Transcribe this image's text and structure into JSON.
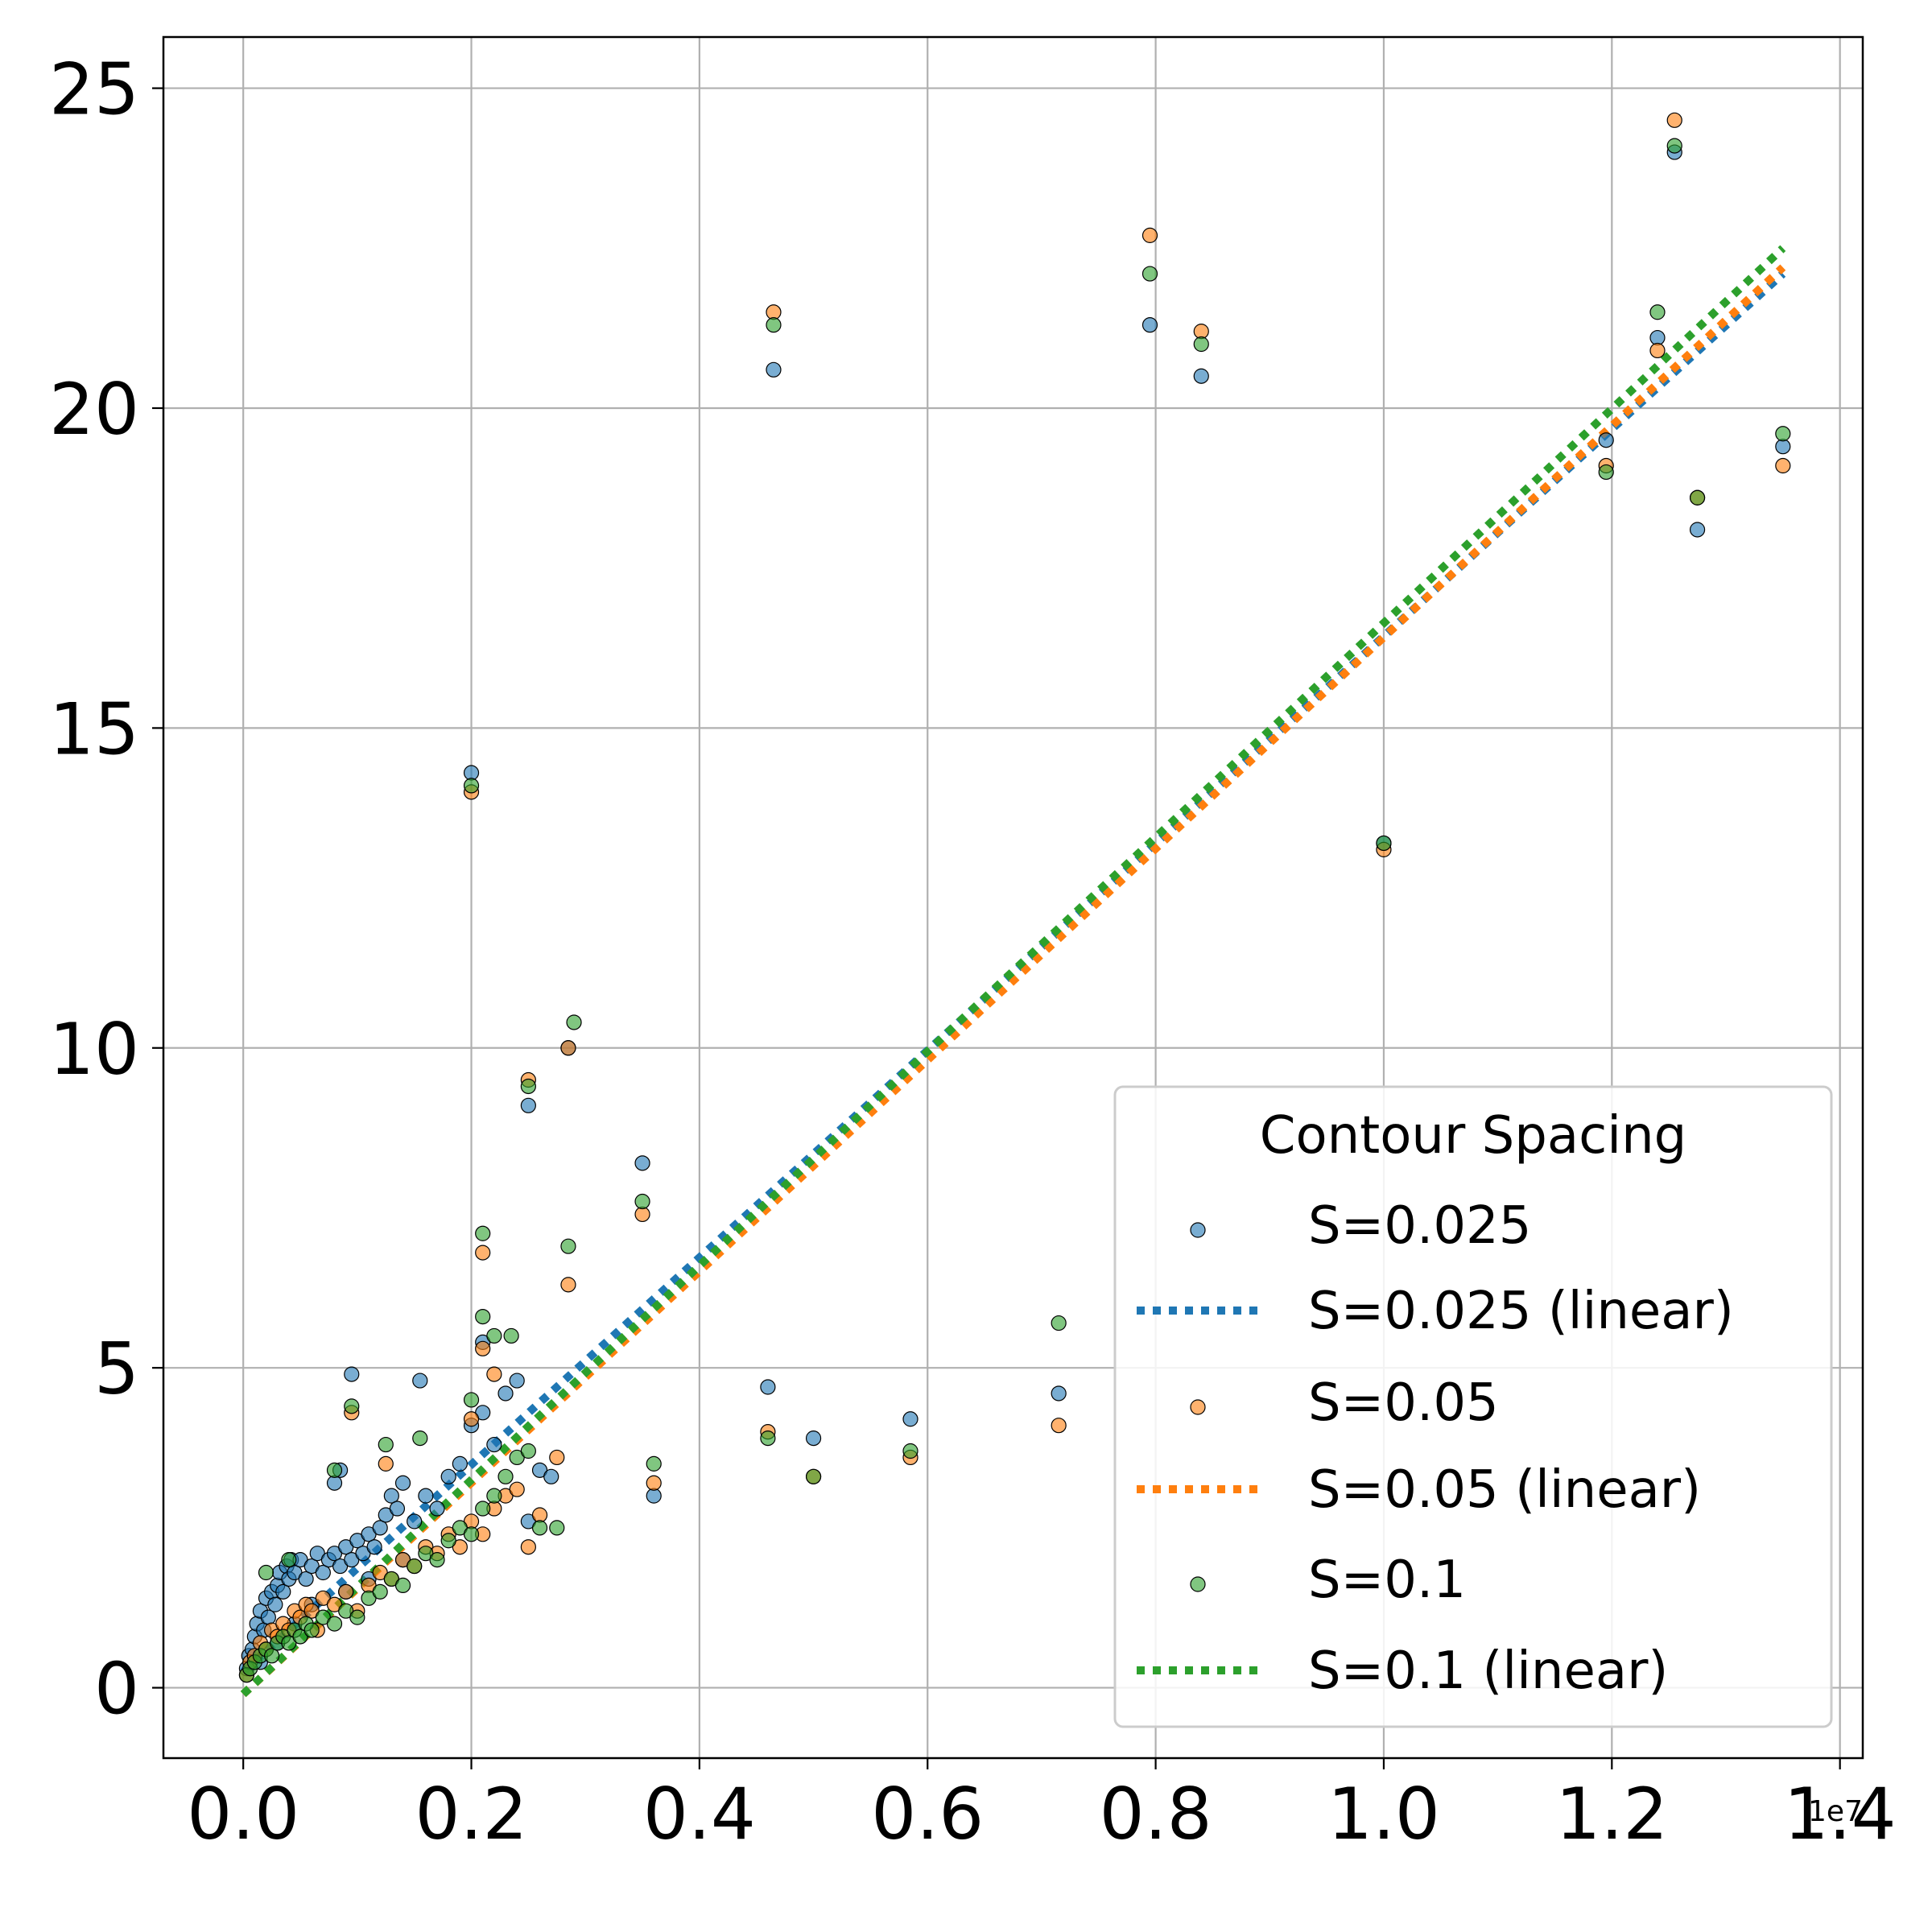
{
  "chart_data": {
    "type": "scatter",
    "x_exponent_label": "1e7",
    "xlim": [
      -0.07,
      1.42
    ],
    "ylim": [
      -1.1,
      25.8
    ],
    "xticks": [
      {
        "value": 0.0,
        "label": "0.0"
      },
      {
        "value": 0.2,
        "label": "0.2"
      },
      {
        "value": 0.4,
        "label": "0.4"
      },
      {
        "value": 0.6,
        "label": "0.6"
      },
      {
        "value": 0.8,
        "label": "0.8"
      },
      {
        "value": 1.0,
        "label": "1.0"
      },
      {
        "value": 1.2,
        "label": "1.2"
      },
      {
        "value": 1.4,
        "label": "1.4"
      }
    ],
    "yticks": [
      {
        "value": 0,
        "label": "0"
      },
      {
        "value": 5,
        "label": "5"
      },
      {
        "value": 10,
        "label": "10"
      },
      {
        "value": 15,
        "label": "15"
      },
      {
        "value": 20,
        "label": "20"
      },
      {
        "value": 25,
        "label": "25"
      }
    ],
    "grid": true,
    "legend": {
      "title": "Contour Spacing",
      "placement": "lower-right",
      "entries": [
        {
          "label": "S=0.025",
          "kind": "marker",
          "color": "#1f77b4"
        },
        {
          "label": "S=0.025 (linear)",
          "kind": "line",
          "color": "#1f77b4"
        },
        {
          "label": "S=0.05",
          "kind": "marker",
          "color": "#ff7f0e"
        },
        {
          "label": "S=0.05 (linear)",
          "kind": "line",
          "color": "#ff7f0e"
        },
        {
          "label": "S=0.1",
          "kind": "marker",
          "color": "#2ca02c"
        },
        {
          "label": "S=0.1 (linear)",
          "kind": "line",
          "color": "#2ca02c"
        }
      ]
    },
    "series": [
      {
        "name": "S=0.025",
        "color": "#1f77b4",
        "points": [
          [
            0.003,
            0.3
          ],
          [
            0.005,
            0.5
          ],
          [
            0.008,
            0.6
          ],
          [
            0.01,
            0.8
          ],
          [
            0.012,
            1.0
          ],
          [
            0.015,
            1.2
          ],
          [
            0.018,
            0.9
          ],
          [
            0.02,
            1.4
          ],
          [
            0.022,
            1.1
          ],
          [
            0.025,
            1.5
          ],
          [
            0.028,
            1.3
          ],
          [
            0.03,
            1.6
          ],
          [
            0.032,
            1.8
          ],
          [
            0.035,
            1.5
          ],
          [
            0.038,
            1.9
          ],
          [
            0.04,
            1.7
          ],
          [
            0.042,
            2.0
          ],
          [
            0.045,
            1.8
          ],
          [
            0.05,
            2.0
          ],
          [
            0.055,
            1.7
          ],
          [
            0.06,
            1.9
          ],
          [
            0.065,
            2.1
          ],
          [
            0.07,
            1.8
          ],
          [
            0.075,
            2.0
          ],
          [
            0.08,
            2.1
          ],
          [
            0.085,
            1.9
          ],
          [
            0.09,
            2.2
          ],
          [
            0.095,
            2.0
          ],
          [
            0.1,
            2.3
          ],
          [
            0.105,
            2.1
          ],
          [
            0.11,
            2.4
          ],
          [
            0.115,
            2.2
          ],
          [
            0.12,
            2.5
          ],
          [
            0.125,
            2.7
          ],
          [
            0.13,
            3.0
          ],
          [
            0.135,
            2.8
          ],
          [
            0.14,
            3.2
          ],
          [
            0.15,
            2.6
          ],
          [
            0.16,
            3.0
          ],
          [
            0.17,
            2.8
          ],
          [
            0.18,
            3.3
          ],
          [
            0.19,
            3.5
          ],
          [
            0.2,
            4.1
          ],
          [
            0.21,
            4.3
          ],
          [
            0.22,
            3.8
          ],
          [
            0.23,
            4.6
          ],
          [
            0.24,
            4.8
          ],
          [
            0.25,
            2.6
          ],
          [
            0.26,
            3.4
          ],
          [
            0.27,
            3.3
          ],
          [
            0.08,
            3.2
          ],
          [
            0.085,
            3.4
          ],
          [
            0.095,
            4.9
          ],
          [
            0.155,
            4.8
          ],
          [
            0.21,
            5.4
          ],
          [
            0.35,
            8.2
          ],
          [
            0.25,
            9.1
          ],
          [
            0.285,
            10.0
          ],
          [
            0.2,
            14.3
          ],
          [
            0.465,
            20.6
          ],
          [
            0.36,
            3.0
          ],
          [
            0.5,
            3.9
          ],
          [
            0.46,
            4.7
          ],
          [
            0.585,
            4.2
          ],
          [
            0.715,
            4.6
          ],
          [
            1.0,
            13.2
          ],
          [
            0.795,
            21.3
          ],
          [
            0.84,
            20.5
          ],
          [
            1.24,
            21.1
          ],
          [
            1.255,
            24.0
          ],
          [
            1.195,
            19.5
          ],
          [
            1.275,
            18.1
          ],
          [
            1.35,
            19.4
          ],
          [
            0.015,
            0.4
          ],
          [
            0.03,
            0.7
          ],
          [
            0.045,
            1.0
          ],
          [
            0.06,
            1.3
          ],
          [
            0.09,
            1.5
          ],
          [
            0.11,
            1.7
          ],
          [
            0.14,
            2.0
          ]
        ]
      },
      {
        "name": "S=0.05",
        "color": "#ff7f0e",
        "points": [
          [
            0.003,
            0.2
          ],
          [
            0.006,
            0.4
          ],
          [
            0.01,
            0.5
          ],
          [
            0.015,
            0.7
          ],
          [
            0.02,
            0.6
          ],
          [
            0.025,
            0.9
          ],
          [
            0.03,
            0.8
          ],
          [
            0.035,
            1.0
          ],
          [
            0.04,
            0.9
          ],
          [
            0.045,
            1.2
          ],
          [
            0.05,
            1.1
          ],
          [
            0.055,
            1.3
          ],
          [
            0.06,
            1.2
          ],
          [
            0.07,
            1.4
          ],
          [
            0.08,
            1.3
          ],
          [
            0.09,
            1.5
          ],
          [
            0.1,
            1.2
          ],
          [
            0.11,
            1.6
          ],
          [
            0.12,
            1.8
          ],
          [
            0.13,
            1.7
          ],
          [
            0.14,
            2.0
          ],
          [
            0.15,
            1.9
          ],
          [
            0.16,
            2.2
          ],
          [
            0.17,
            2.1
          ],
          [
            0.18,
            2.4
          ],
          [
            0.19,
            2.2
          ],
          [
            0.2,
            2.6
          ],
          [
            0.21,
            2.4
          ],
          [
            0.22,
            2.8
          ],
          [
            0.23,
            3.0
          ],
          [
            0.24,
            3.1
          ],
          [
            0.25,
            2.2
          ],
          [
            0.26,
            2.7
          ],
          [
            0.275,
            3.6
          ],
          [
            0.095,
            4.3
          ],
          [
            0.125,
            3.5
          ],
          [
            0.2,
            4.2
          ],
          [
            0.21,
            5.3
          ],
          [
            0.21,
            6.8
          ],
          [
            0.22,
            4.9
          ],
          [
            0.285,
            6.3
          ],
          [
            0.25,
            9.5
          ],
          [
            0.285,
            10.0
          ],
          [
            0.35,
            7.4
          ],
          [
            0.2,
            14.0
          ],
          [
            0.465,
            21.5
          ],
          [
            0.36,
            3.2
          ],
          [
            0.5,
            3.3
          ],
          [
            0.46,
            4.0
          ],
          [
            0.585,
            3.6
          ],
          [
            0.715,
            4.1
          ],
          [
            1.0,
            13.1
          ],
          [
            0.795,
            22.7
          ],
          [
            0.84,
            21.2
          ],
          [
            1.24,
            20.9
          ],
          [
            1.255,
            24.5
          ],
          [
            1.195,
            19.1
          ],
          [
            1.275,
            18.6
          ],
          [
            1.35,
            19.1
          ],
          [
            0.065,
            0.9
          ]
        ]
      },
      {
        "name": "S=0.1",
        "color": "#2ca02c",
        "points": [
          [
            0.003,
            0.2
          ],
          [
            0.006,
            0.3
          ],
          [
            0.01,
            0.4
          ],
          [
            0.015,
            0.5
          ],
          [
            0.02,
            0.6
          ],
          [
            0.025,
            0.5
          ],
          [
            0.03,
            0.7
          ],
          [
            0.035,
            0.8
          ],
          [
            0.04,
            0.7
          ],
          [
            0.045,
            0.9
          ],
          [
            0.05,
            0.8
          ],
          [
            0.055,
            1.0
          ],
          [
            0.06,
            0.9
          ],
          [
            0.07,
            1.1
          ],
          [
            0.08,
            1.0
          ],
          [
            0.09,
            1.2
          ],
          [
            0.1,
            1.1
          ],
          [
            0.11,
            1.4
          ],
          [
            0.12,
            1.5
          ],
          [
            0.13,
            1.7
          ],
          [
            0.14,
            1.6
          ],
          [
            0.15,
            1.9
          ],
          [
            0.16,
            2.1
          ],
          [
            0.17,
            2.0
          ],
          [
            0.18,
            2.3
          ],
          [
            0.19,
            2.5
          ],
          [
            0.2,
            2.4
          ],
          [
            0.21,
            2.8
          ],
          [
            0.22,
            3.0
          ],
          [
            0.23,
            3.3
          ],
          [
            0.24,
            3.6
          ],
          [
            0.25,
            3.7
          ],
          [
            0.26,
            2.5
          ],
          [
            0.275,
            2.5
          ],
          [
            0.02,
            1.8
          ],
          [
            0.04,
            2.0
          ],
          [
            0.08,
            3.4
          ],
          [
            0.095,
            4.4
          ],
          [
            0.125,
            3.8
          ],
          [
            0.155,
            3.9
          ],
          [
            0.2,
            4.5
          ],
          [
            0.21,
            5.8
          ],
          [
            0.21,
            7.1
          ],
          [
            0.22,
            5.5
          ],
          [
            0.235,
            5.5
          ],
          [
            0.285,
            6.9
          ],
          [
            0.29,
            10.4
          ],
          [
            0.25,
            9.4
          ],
          [
            0.35,
            7.6
          ],
          [
            0.2,
            14.1
          ],
          [
            0.465,
            21.3
          ],
          [
            0.36,
            3.5
          ],
          [
            0.5,
            3.3
          ],
          [
            0.46,
            3.9
          ],
          [
            0.585,
            3.7
          ],
          [
            0.715,
            5.7
          ],
          [
            1.0,
            13.2
          ],
          [
            0.795,
            22.1
          ],
          [
            0.84,
            21.0
          ],
          [
            1.24,
            21.5
          ],
          [
            1.255,
            24.1
          ],
          [
            1.195,
            19.0
          ],
          [
            1.275,
            18.6
          ],
          [
            1.35,
            19.6
          ]
        ]
      }
    ],
    "fits": [
      {
        "name": "S=0.025 (linear)",
        "color": "#1f77b4",
        "x": [
          0.0,
          1.35
        ],
        "y": [
          0.25,
          22.1
        ]
      },
      {
        "name": "S=0.05 (linear)",
        "color": "#ff7f0e",
        "x": [
          0.0,
          1.35
        ],
        "y": [
          -0.1,
          22.2
        ]
      },
      {
        "name": "S=0.1 (linear)",
        "color": "#2ca02c",
        "x": [
          0.0,
          1.35
        ],
        "y": [
          -0.1,
          22.5
        ]
      }
    ]
  }
}
